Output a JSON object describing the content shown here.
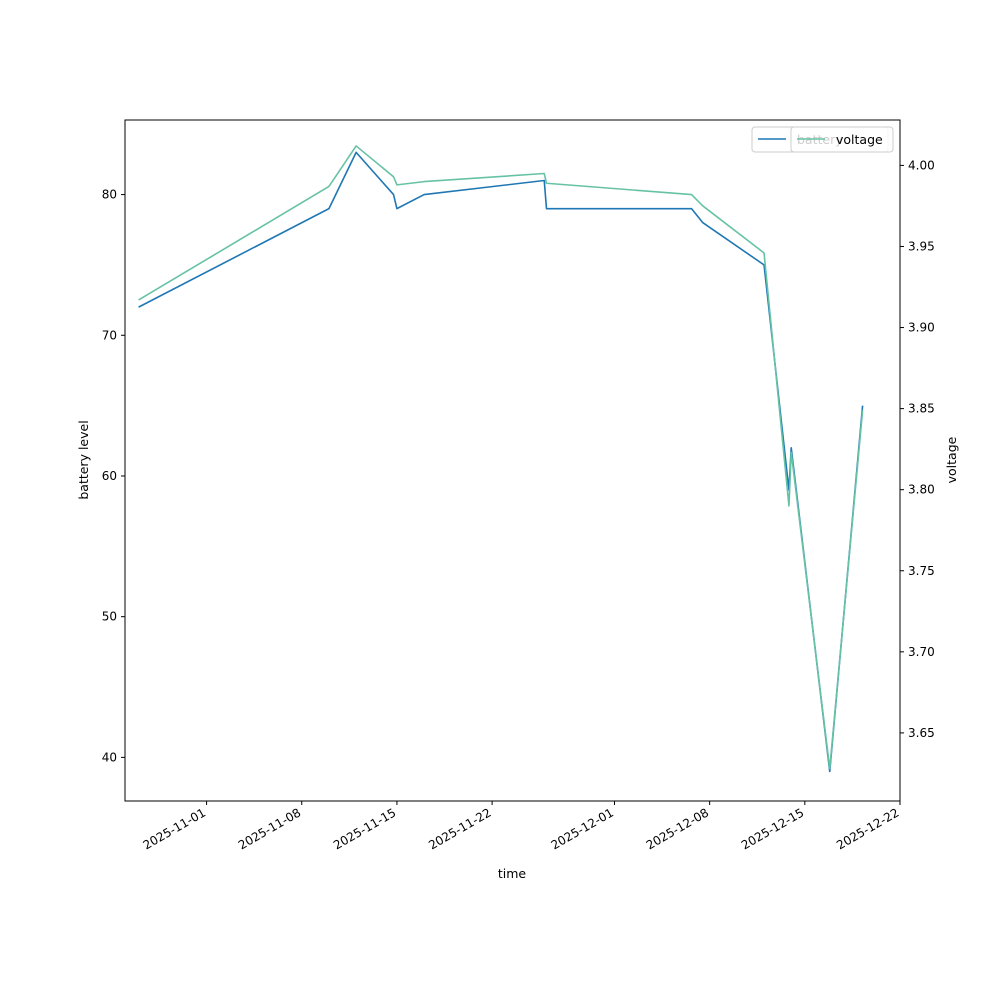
{
  "chart_data": {
    "type": "line",
    "xlabel": "time",
    "ylabel": "battery level",
    "y2label": "voltage",
    "xlim": [
      "2025-10-26",
      "2025-12-22"
    ],
    "ylim": [
      36.9,
      85.3
    ],
    "y2lim": [
      3.608,
      4.028
    ],
    "xticks": [
      "2025-11-01",
      "2025-11-08",
      "2025-11-15",
      "2025-11-22",
      "2025-12-01",
      "2025-12-08",
      "2025-12-15",
      "2025-12-22"
    ],
    "yticks": [
      40,
      50,
      60,
      70,
      80
    ],
    "y2ticks": [
      3.65,
      3.7,
      3.75,
      3.8,
      3.85,
      3.9,
      3.95,
      4.0
    ],
    "series": [
      {
        "name": "battery",
        "axis": "left",
        "color": "#1f77b4",
        "points": [
          [
            "2025-10-27",
            72.0
          ],
          [
            "2025-11-10",
            79.0
          ],
          [
            "2025-11-12",
            83.0
          ],
          [
            "2025-11-14 18:00",
            80.0
          ],
          [
            "2025-11-15",
            79.0
          ],
          [
            "2025-11-17",
            80.0
          ],
          [
            "2025-11-25 20:00",
            81.0
          ],
          [
            "2025-11-26",
            79.0
          ],
          [
            "2025-12-06 16:00",
            79.0
          ],
          [
            "2025-12-07 12:00",
            78.0
          ],
          [
            "2025-12-12",
            75.0
          ],
          [
            "2025-12-13 20:00",
            59.0
          ],
          [
            "2025-12-14",
            62.0
          ],
          [
            "2025-12-16 20:00",
            39.0
          ],
          [
            "2025-12-19 06:00",
            65.0
          ]
        ]
      },
      {
        "name": "voltage",
        "axis": "right",
        "color": "#66c2a5",
        "points": [
          [
            "2025-10-27",
            3.917
          ],
          [
            "2025-11-10",
            3.987
          ],
          [
            "2025-11-12",
            4.012
          ],
          [
            "2025-11-14 18:00",
            3.993
          ],
          [
            "2025-11-15",
            3.988
          ],
          [
            "2025-11-17",
            3.99
          ],
          [
            "2025-11-25 20:00",
            3.995
          ],
          [
            "2025-11-26",
            3.989
          ],
          [
            "2025-12-06 16:00",
            3.982
          ],
          [
            "2025-12-07 12:00",
            3.975
          ],
          [
            "2025-12-12",
            3.946
          ],
          [
            "2025-12-13 20:00",
            3.79
          ],
          [
            "2025-12-14",
            3.823
          ],
          [
            "2025-12-16 20:00",
            3.628
          ],
          [
            "2025-12-19 06:00",
            3.849
          ]
        ]
      }
    ],
    "legend_left": {
      "placement": "upper right",
      "entries": [
        "battery"
      ]
    },
    "legend_right": {
      "placement": "upper right",
      "entries": [
        "voltage"
      ]
    },
    "grid": false
  }
}
